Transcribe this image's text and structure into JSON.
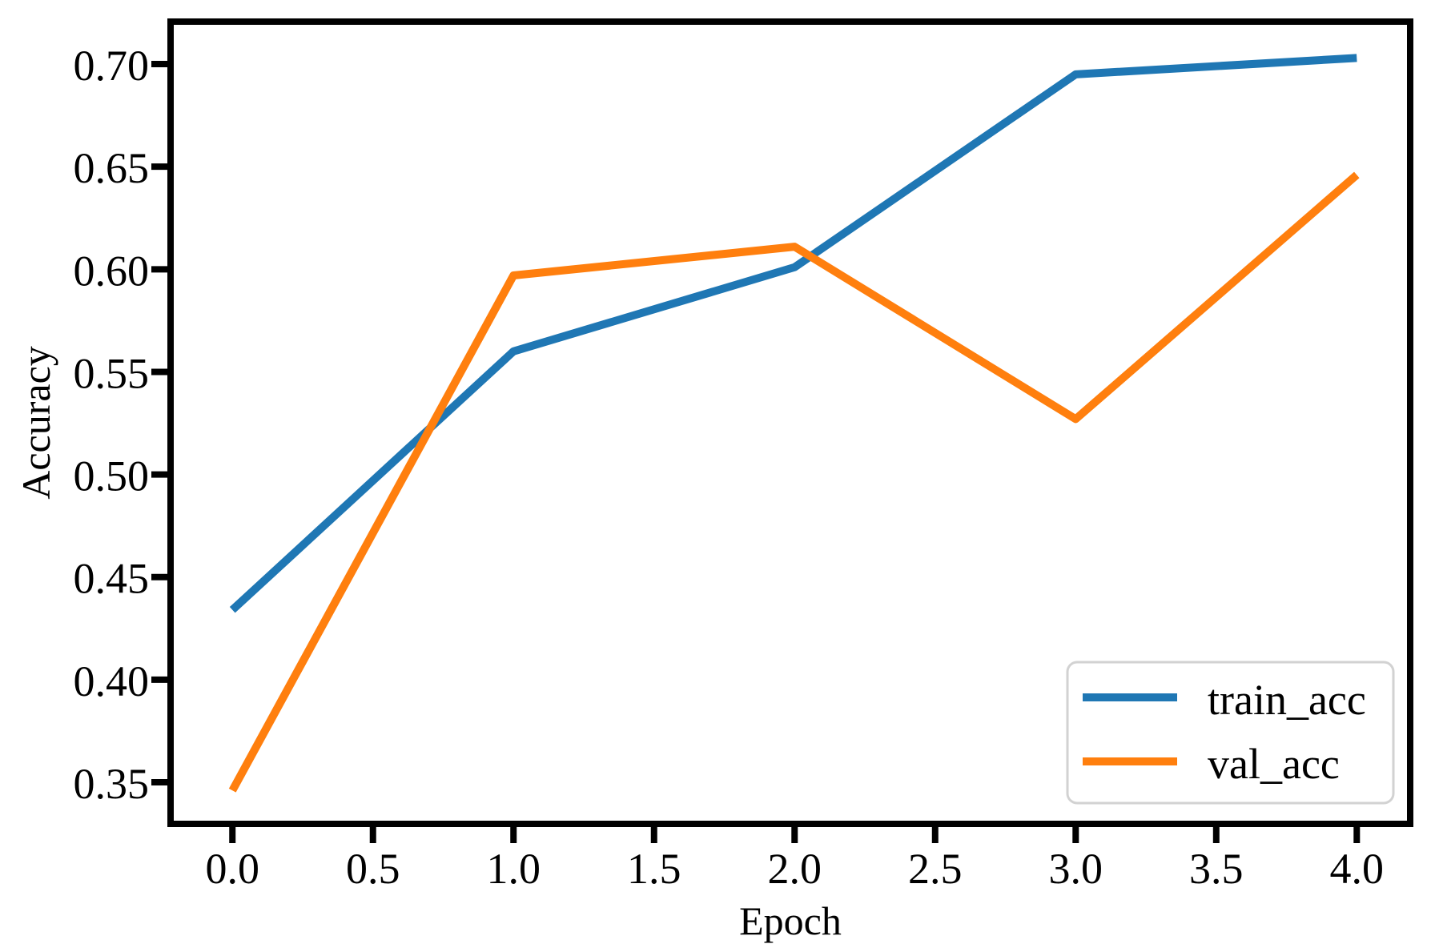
{
  "chart_data": {
    "type": "line",
    "title": "",
    "xlabel": "Epoch",
    "ylabel": "Accuracy",
    "x": [
      0,
      1,
      2,
      3,
      4
    ],
    "series": [
      {
        "name": "train_acc",
        "color": "#1f77b4",
        "values": [
          0.434,
          0.56,
          0.601,
          0.695,
          0.703
        ]
      },
      {
        "name": "val_acc",
        "color": "#ff7f0e",
        "values": [
          0.346,
          0.597,
          0.611,
          0.527,
          0.646
        ]
      }
    ],
    "x_tick_labels": [
      "0.0",
      "0.5",
      "1.0",
      "1.5",
      "2.0",
      "2.5",
      "3.0",
      "3.5",
      "4.0"
    ],
    "y_tick_labels": [
      "0.35",
      "0.40",
      "0.45",
      "0.50",
      "0.55",
      "0.60",
      "0.65",
      "0.70"
    ],
    "xlim": [
      -0.22,
      4.19
    ],
    "ylim": [
      0.3297,
      0.7207
    ],
    "grid": false,
    "legend_position": "lower right"
  }
}
